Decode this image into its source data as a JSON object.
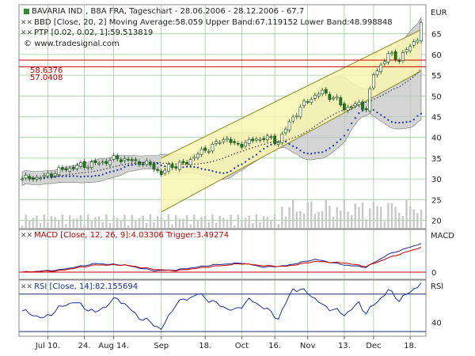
{
  "header": {
    "symbol": "BAVARIA IND",
    "exchange_info": ", B8A FRA, Tageschart - 28.06.2006 - 28.12.2006 - 67.7",
    "currency": "EUR",
    "bbd_line": "BBD [Close, 20, 2] Moving Average:58.059 Upper Band:67.119152 Lower Band:48.998848",
    "ptp_line": "PTP [0.02, 0.02, 1]:59.513819",
    "website": "www.tradesignal.com",
    "level1": "58.6376",
    "level2": "57.0408"
  },
  "chart_data": [
    {
      "type": "candlestick",
      "name": "price",
      "title": "BAVARIA IND , B8A FRA, Tageschart - 28.06.2006 - 28.12.2006 - 67.7",
      "ylabel": "EUR",
      "ylim": [
        18,
        72
      ],
      "yticks": [
        20,
        25,
        30,
        35,
        40,
        45,
        50,
        55,
        60,
        65
      ],
      "x_labels": [
        "Jul 10.",
        "24.",
        "Aug 14.",
        "Sep",
        "18.",
        "Oct",
        "16.",
        "Nov",
        "13.",
        "Dec",
        "18."
      ],
      "x_label_index": [
        7,
        17,
        25,
        38,
        50,
        60,
        69,
        78,
        88,
        96,
        106
      ],
      "n_bars": 110,
      "close_anchors": [
        [
          0,
          30
        ],
        [
          6,
          30.5
        ],
        [
          10,
          32
        ],
        [
          15,
          33
        ],
        [
          22,
          34
        ],
        [
          26,
          35
        ],
        [
          32,
          34
        ],
        [
          36,
          33
        ],
        [
          38,
          31
        ],
        [
          40,
          33
        ],
        [
          44,
          33.5
        ],
        [
          48,
          36
        ],
        [
          52,
          38
        ],
        [
          56,
          40
        ],
        [
          58,
          38
        ],
        [
          62,
          39
        ],
        [
          66,
          40
        ],
        [
          70,
          39
        ],
        [
          74,
          45
        ],
        [
          78,
          49
        ],
        [
          82,
          51
        ],
        [
          86,
          49
        ],
        [
          88,
          47
        ],
        [
          92,
          48
        ],
        [
          94,
          47
        ],
        [
          96,
          55
        ],
        [
          100,
          60
        ],
        [
          103,
          59
        ],
        [
          106,
          62
        ],
        [
          108,
          64
        ],
        [
          109,
          67.7
        ]
      ],
      "horizontal_levels": [
        58.6376,
        57.0408
      ],
      "channel_lines": [
        {
          "from": [
            38,
            35
          ],
          "to": [
            109,
            66
          ]
        },
        {
          "from": [
            38,
            22
          ],
          "to": [
            109,
            56
          ]
        }
      ],
      "bollinger": {
        "period": 20,
        "stddev": 2,
        "moving_average": 58.059,
        "upper_band": 67.119152,
        "lower_band": 48.998848
      },
      "ptp_last": 59.513819
    },
    {
      "type": "line",
      "name": "macd",
      "title": "MACD [Close, 12, 26, 9]:4.03306 Trigger:3.49274",
      "ylabel": "MACD",
      "ylim": [
        -1,
        6
      ],
      "yticks": [
        0
      ],
      "macd_anchors": [
        [
          0,
          0
        ],
        [
          10,
          0.3
        ],
        [
          20,
          1.2
        ],
        [
          28,
          1.0
        ],
        [
          36,
          0.2
        ],
        [
          42,
          0.3
        ],
        [
          52,
          1.0
        ],
        [
          60,
          1.3
        ],
        [
          66,
          0.7
        ],
        [
          72,
          0.9
        ],
        [
          80,
          1.8
        ],
        [
          88,
          1.0
        ],
        [
          94,
          0.7
        ],
        [
          100,
          2.5
        ],
        [
          109,
          4.03
        ]
      ],
      "trigger_anchors": [
        [
          0,
          0
        ],
        [
          10,
          0.2
        ],
        [
          20,
          1.0
        ],
        [
          28,
          1.0
        ],
        [
          36,
          0.4
        ],
        [
          42,
          0.2
        ],
        [
          52,
          0.8
        ],
        [
          60,
          1.2
        ],
        [
          66,
          0.9
        ],
        [
          72,
          0.8
        ],
        [
          80,
          1.5
        ],
        [
          88,
          1.3
        ],
        [
          94,
          0.8
        ],
        [
          100,
          2.0
        ],
        [
          109,
          3.49
        ]
      ],
      "macd_last": 4.03306,
      "trigger_last": 3.49274
    },
    {
      "type": "line",
      "name": "rsi",
      "title": "RSI [Close, 14]:82.155694",
      "ylabel": "RSI",
      "ylim": [
        25,
        85
      ],
      "yticks": [
        40
      ],
      "levels": [
        70,
        30
      ],
      "rsi_anchors": [
        [
          0,
          52
        ],
        [
          6,
          44
        ],
        [
          10,
          55
        ],
        [
          14,
          62
        ],
        [
          20,
          50
        ],
        [
          26,
          66
        ],
        [
          32,
          45
        ],
        [
          36,
          38
        ],
        [
          38,
          32
        ],
        [
          42,
          60
        ],
        [
          48,
          70
        ],
        [
          54,
          58
        ],
        [
          58,
          52
        ],
        [
          62,
          64
        ],
        [
          66,
          56
        ],
        [
          70,
          44
        ],
        [
          74,
          76
        ],
        [
          78,
          72
        ],
        [
          82,
          58
        ],
        [
          86,
          52
        ],
        [
          88,
          48
        ],
        [
          92,
          60
        ],
        [
          94,
          50
        ],
        [
          96,
          58
        ],
        [
          100,
          74
        ],
        [
          103,
          64
        ],
        [
          106,
          72
        ],
        [
          109,
          82.16
        ]
      ],
      "rsi_last": 82.155694
    }
  ],
  "colors": {
    "panel_bg": "#ffffff",
    "grid": "#9acb9a",
    "channel_fill": "#f7f5b2",
    "channel_line": "#8a8a20",
    "level_red": "#cc0000",
    "candle_up": "#ffffff",
    "candle_down": "#1e7a1e",
    "band_fill": "#c6c6c6",
    "ptp_blue": "#1a2ea8",
    "ma_dot": "#333333",
    "volume": "#c8c8c8",
    "macd_red": "#d00000",
    "macd_navy": "#1a2a8a",
    "rsi_blue": "#1a2ea8"
  }
}
